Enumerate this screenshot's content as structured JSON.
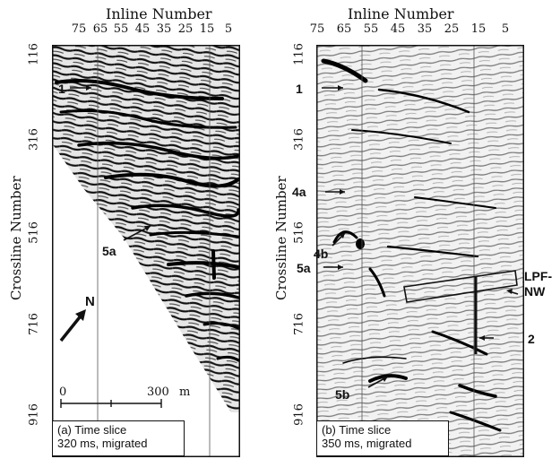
{
  "panels": [
    {
      "id": "a",
      "x_axis_title": "Inline Number",
      "y_axis_title": "Crossline Number",
      "x_ticks": [
        "75",
        "65",
        "55",
        "45",
        "35",
        "25",
        "15",
        "5"
      ],
      "y_ticks": [
        "116",
        "316",
        "516",
        "716",
        "916"
      ],
      "annotations": [
        "1",
        "5a",
        "N"
      ],
      "scale_bar": {
        "start": "0",
        "end": "300",
        "unit": "m"
      },
      "caption_line1": "(a) Time slice",
      "caption_line2": "320 ms, migrated"
    },
    {
      "id": "b",
      "x_axis_title": "Inline Number",
      "y_axis_title": "Crossline Number",
      "x_ticks": [
        "75",
        "65",
        "55",
        "45",
        "35",
        "25",
        "15",
        "5"
      ],
      "y_ticks": [
        "116",
        "316",
        "516",
        "716",
        "916"
      ],
      "annotations": [
        "1",
        "4a",
        "4b",
        "5a",
        "5b",
        "2"
      ],
      "box_label_line1": "LPF-",
      "box_label_line2": "NW",
      "caption_line1": "(b) Time slice",
      "caption_line2": "350 ms, migrated"
    }
  ],
  "colors": {
    "ink": "#111111",
    "background": "#ffffff"
  }
}
